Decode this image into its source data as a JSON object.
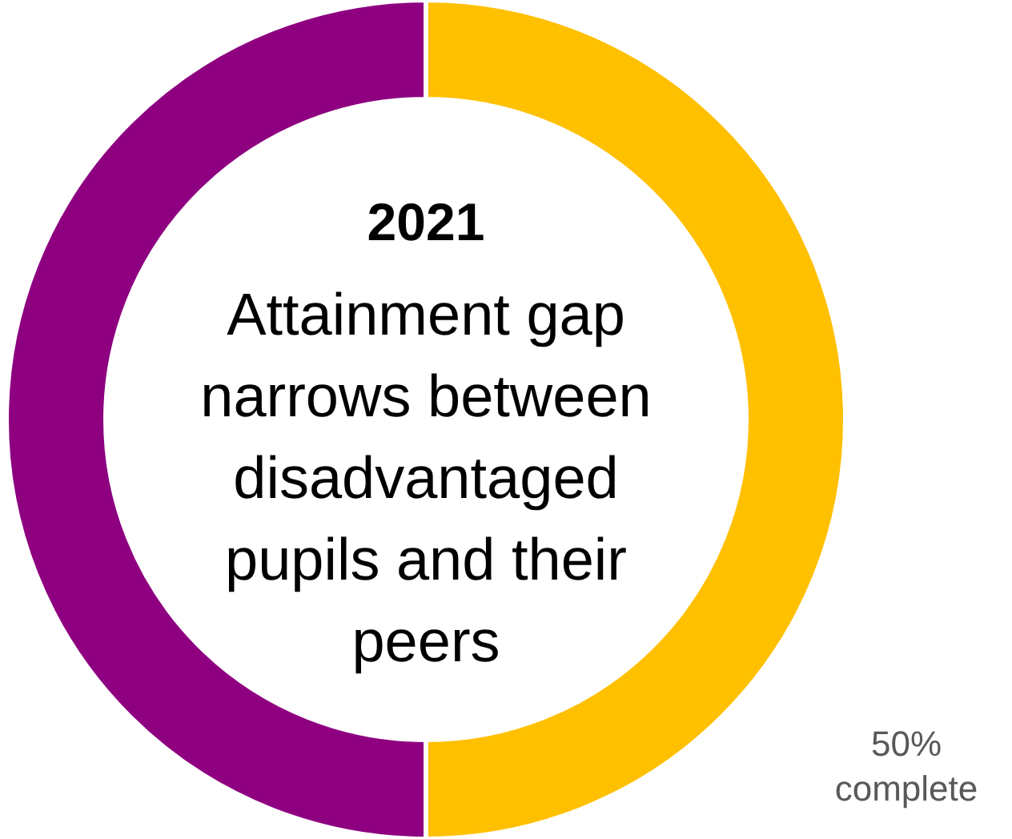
{
  "chart_data": {
    "type": "donut",
    "title": "2021",
    "subtitle": "Attainment gap narrows between disadvantaged pupils and their peers",
    "categories": [
      "complete",
      null
    ],
    "values": [
      50,
      50
    ],
    "colors": [
      "#ffc000",
      "#8e0080"
    ],
    "value_labels": [
      "50%",
      null
    ]
  }
}
